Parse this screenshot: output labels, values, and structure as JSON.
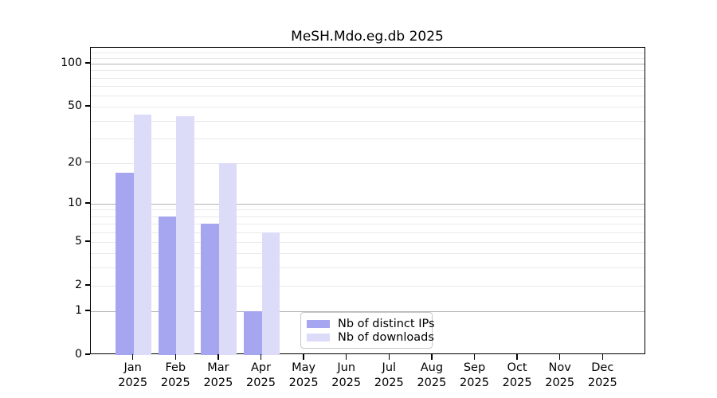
{
  "chart_data": {
    "type": "bar",
    "title": "MeSH.Mdo.eg.db 2025",
    "categories": [
      "Jan",
      "Feb",
      "Mar",
      "Apr",
      "May",
      "Jun",
      "Jul",
      "Aug",
      "Sep",
      "Oct",
      "Nov",
      "Dec"
    ],
    "x_tick_second_line": "2025",
    "series": [
      {
        "name": "Nb of distinct IPs",
        "color": "#a5a5f0",
        "values": [
          17,
          8,
          7,
          1,
          0,
          0,
          0,
          0,
          0,
          0,
          0,
          0
        ]
      },
      {
        "name": "Nb of downloads",
        "color": "#dcdcf8",
        "values": [
          44,
          43,
          20,
          6,
          0,
          0,
          0,
          0,
          0,
          0,
          0,
          0
        ]
      }
    ],
    "yscale": "log1p",
    "ylim": [
      0,
      129
    ],
    "yticks": [
      0,
      1,
      2,
      5,
      10,
      20,
      50,
      100
    ],
    "major_gridlines": [
      1,
      10,
      100
    ],
    "minor_gridlines": [
      2,
      3,
      4,
      5,
      6,
      7,
      8,
      9,
      20,
      30,
      40,
      50,
      60,
      70,
      80,
      90,
      110,
      120
    ],
    "grid": true,
    "legend": {
      "items": [
        "Nb of distinct IPs",
        "Nb of downloads"
      ],
      "position": "lower-center"
    },
    "colors": {
      "background": "#ffffff",
      "text": "#000000",
      "spine": "#000000",
      "major_grid": "#b3b3b3",
      "minor_grid": "#e9e9e9",
      "legend_border": "#c8c8c8"
    }
  }
}
